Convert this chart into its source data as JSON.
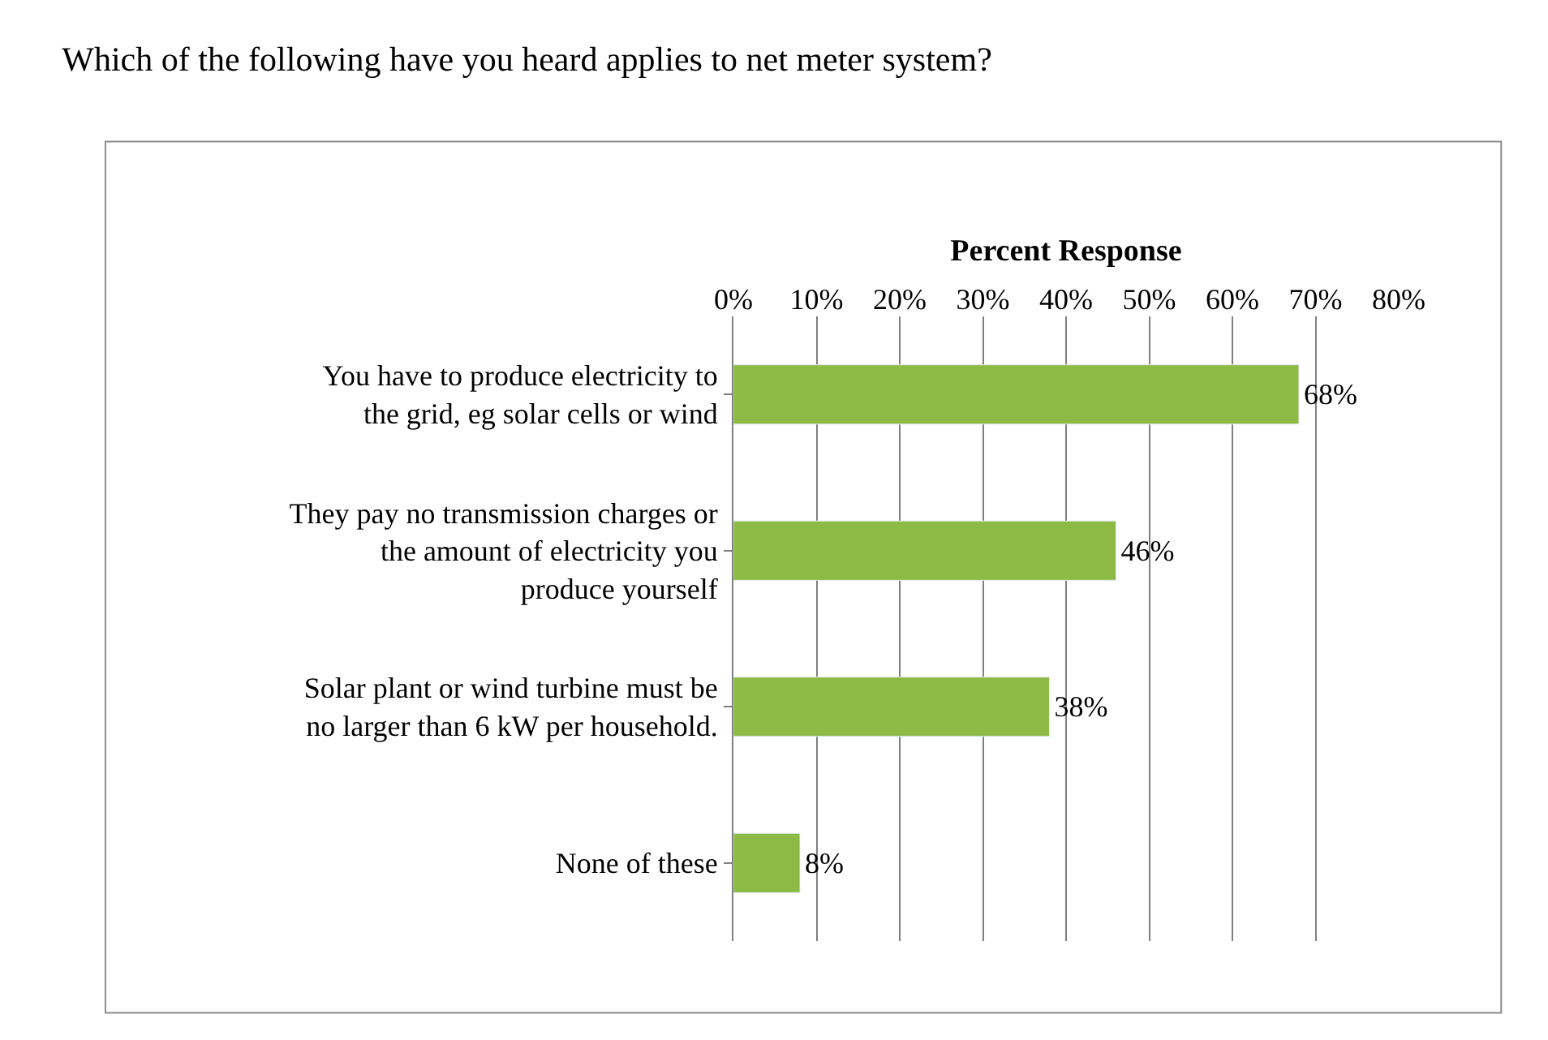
{
  "chart_data": {
    "type": "bar",
    "orientation": "horizontal",
    "title": "Which of the following have you heard applies to net meter system?",
    "xlabel": "Percent Response",
    "categories": [
      "You have to produce electricity to the grid, eg solar cells or wind",
      "They pay no transmission charges or the amount of electricity you produce yourself",
      "Solar plant or wind turbine must be no larger than 6 kW per household.",
      "None of these"
    ],
    "values": [
      68,
      46,
      38,
      8
    ],
    "value_labels": [
      "68%",
      "46%",
      "38%",
      "8%"
    ],
    "color": "#8cba44",
    "xlim": [
      0,
      80
    ],
    "xticks": [
      {
        "value": 0,
        "label": "0%"
      },
      {
        "value": 10,
        "label": "10%"
      },
      {
        "value": 20,
        "label": "20%"
      },
      {
        "value": 30,
        "label": "30%"
      },
      {
        "value": 40,
        "label": "40%"
      },
      {
        "value": 50,
        "label": "50%"
      },
      {
        "value": 60,
        "label": "60%"
      },
      {
        "value": 70,
        "label": "70%"
      },
      {
        "value": 80,
        "label": "80%"
      }
    ],
    "grid": "x",
    "legend": false
  }
}
